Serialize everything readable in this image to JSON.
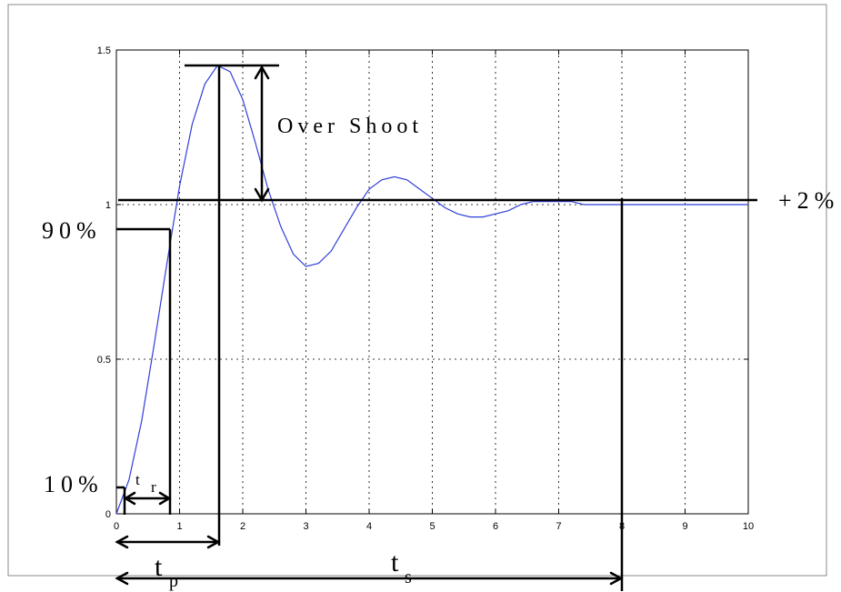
{
  "chart_data": {
    "type": "line",
    "title": "",
    "xlabel": "",
    "ylabel": "",
    "xlim": [
      0,
      10
    ],
    "ylim": [
      0,
      1.5
    ],
    "x_ticks": [
      "0",
      "1",
      "2",
      "3",
      "4",
      "5",
      "6",
      "7",
      "8",
      "9",
      "10"
    ],
    "y_ticks": [
      "0",
      "0.5",
      "1",
      "1.5"
    ],
    "grid": true,
    "line_color": "#2f3fd8",
    "series": [
      {
        "x": [
          0,
          0.2,
          0.4,
          0.6,
          0.8,
          1.0,
          1.2,
          1.4,
          1.6,
          1.8,
          2.0,
          2.2,
          2.4,
          2.6,
          2.8,
          3.0,
          3.2,
          3.4,
          3.6,
          3.8,
          4.0,
          4.2,
          4.4,
          4.6,
          4.8,
          5.0,
          5.2,
          5.4,
          5.6,
          5.8,
          6.0,
          6.2,
          6.4,
          6.6,
          6.8,
          7.0,
          7.2,
          7.4,
          7.6,
          7.8,
          8.0,
          8.2,
          8.4,
          8.6,
          8.8,
          9.0,
          9.2,
          9.4,
          9.6,
          9.8,
          10.0
        ],
        "y": [
          0,
          0.11,
          0.3,
          0.55,
          0.81,
          1.06,
          1.26,
          1.39,
          1.45,
          1.43,
          1.34,
          1.2,
          1.05,
          0.93,
          0.84,
          0.8,
          0.81,
          0.85,
          0.92,
          0.99,
          1.05,
          1.08,
          1.09,
          1.08,
          1.05,
          1.02,
          0.99,
          0.97,
          0.96,
          0.96,
          0.97,
          0.98,
          1.0,
          1.01,
          1.01,
          1.01,
          1.01,
          1.0,
          1.0,
          1.0,
          1.0,
          1.0,
          1.0,
          1.0,
          1.0,
          1.0,
          1.0,
          1.0,
          1.0,
          1.0,
          1.0
        ]
      }
    ]
  },
  "annotations": {
    "overshoot": "Over Shoot",
    "plus2": "+2%",
    "pct90": "90%",
    "pct10": "10%",
    "tr_main": "t",
    "tr_sub": "r",
    "tp_main": "t",
    "tp_sub": "p",
    "ts_main": "t",
    "ts_sub": "s"
  }
}
